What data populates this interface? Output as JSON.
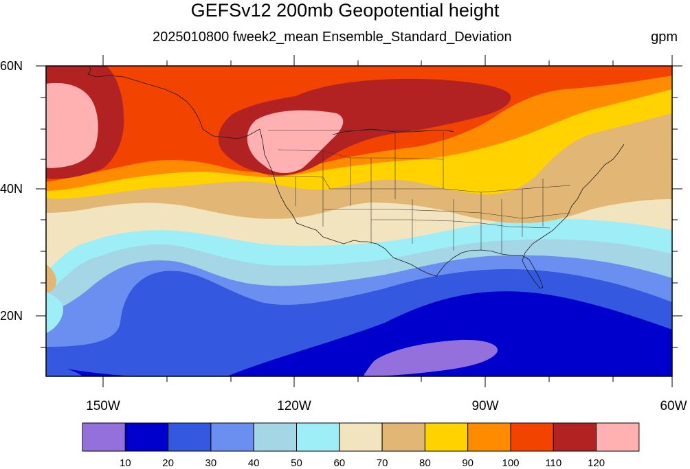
{
  "title": "GEFSv12 200mb Geopotential height",
  "subtitle": "2025010800 fweek2_mean Ensemble_Standard_Deviation",
  "units": "gpm",
  "lat_labels": [
    "60N",
    "40N",
    "20N"
  ],
  "lon_labels": [
    "150W",
    "120W",
    "90W",
    "60W"
  ],
  "colorbar": {
    "colors": [
      "#9370db",
      "#0000cd",
      "#3458e0",
      "#6a8ff0",
      "#a4d6e6",
      "#9eeef8",
      "#f3e4c0",
      "#e2b674",
      "#ffd200",
      "#ff8c00",
      "#f24400",
      "#b22222",
      "#ffb0b0"
    ],
    "labels": [
      "10",
      "20",
      "30",
      "40",
      "50",
      "60",
      "70",
      "80",
      "90",
      "100",
      "110",
      "120"
    ]
  }
}
